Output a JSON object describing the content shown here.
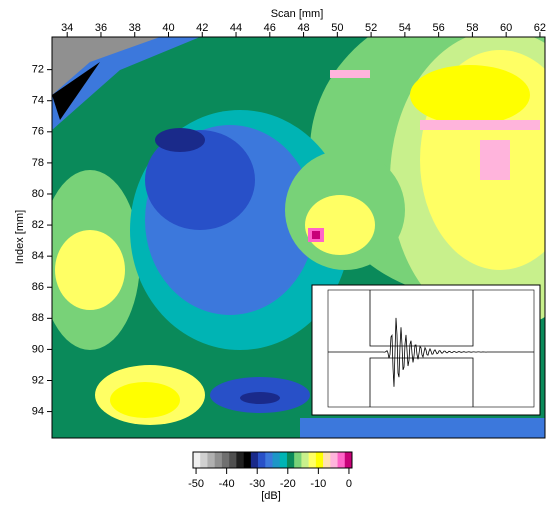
{
  "chart_data": {
    "type": "heatmap",
    "x_axis": {
      "label": "Scan [mm]",
      "lim": [
        33.1,
        62.3
      ],
      "ticks": [
        34,
        36,
        38,
        40,
        42,
        44,
        46,
        48,
        50,
        52,
        54,
        56,
        58,
        60,
        62
      ]
    },
    "y_axis": {
      "label": "Index [mm]",
      "lim": [
        69.9,
        95.7
      ],
      "ticks": [
        72,
        74,
        76,
        78,
        80,
        82,
        84,
        86,
        88,
        90,
        92,
        94
      ]
    },
    "colorbar": {
      "label": "[dB]",
      "lim": [
        -51,
        1
      ],
      "ticks": [
        -50,
        -40,
        -30,
        -20,
        -10,
        0
      ],
      "colors": [
        "#f0f0f0",
        "#d0d0d0",
        "#b0b0b0",
        "#909090",
        "#707070",
        "#505050",
        "#202020",
        "#000000",
        "#1a2a8a",
        "#2850c8",
        "#3c78dc",
        "#1e96c8",
        "#00b4b4",
        "#0a8a5a",
        "#78d278",
        "#c8f08c",
        "#ffff64",
        "#ffff00",
        "#ffe0b4",
        "#ffb4dc",
        "#ff64c8",
        "#c80078"
      ]
    }
  }
}
